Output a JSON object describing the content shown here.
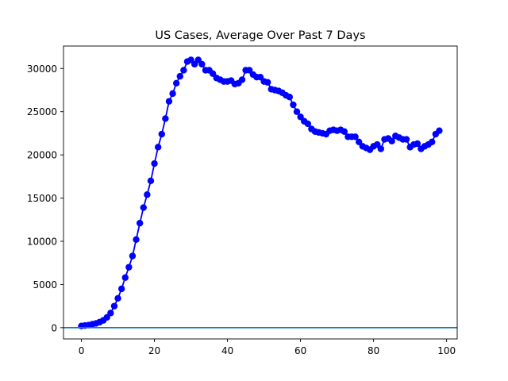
{
  "chart_data": {
    "type": "line",
    "title": "US Cases, Average Over Past 7 Days",
    "xlabel": "",
    "ylabel": "",
    "xlim": [
      -4.9,
      102.9
    ],
    "ylim": [
      -1300,
      32600
    ],
    "x_ticks": [
      0,
      20,
      40,
      60,
      80,
      100
    ],
    "y_ticks": [
      0,
      5000,
      10000,
      15000,
      20000,
      25000,
      30000
    ],
    "grid": false,
    "legend": "none",
    "series": [
      {
        "color": "#0000ff",
        "marker": "circle",
        "x": [
          0,
          1,
          2,
          3,
          4,
          5,
          6,
          7,
          8,
          9,
          10,
          11,
          12,
          13,
          14,
          15,
          16,
          17,
          18,
          19,
          20,
          21,
          22,
          23,
          24,
          25,
          26,
          27,
          28,
          29,
          30,
          31,
          32,
          33,
          34,
          35,
          36,
          37,
          38,
          39,
          40,
          41,
          42,
          43,
          44,
          45,
          46,
          47,
          48,
          49,
          50,
          51,
          52,
          53,
          54,
          55,
          56,
          57,
          58,
          59,
          60,
          61,
          62,
          63,
          64,
          65,
          66,
          67,
          68,
          69,
          70,
          71,
          72,
          73,
          74,
          75,
          76,
          77,
          78,
          79,
          80,
          81,
          82,
          83,
          84,
          85,
          86,
          87,
          88,
          89,
          90,
          91,
          92,
          93,
          94,
          95,
          96,
          97,
          98
        ],
        "y": [
          200,
          250,
          300,
          400,
          500,
          650,
          850,
          1200,
          1700,
          2500,
          3400,
          4500,
          5800,
          7000,
          8300,
          10200,
          12100,
          13900,
          15400,
          17000,
          19000,
          20900,
          22400,
          24200,
          26200,
          27100,
          28300,
          29100,
          29800,
          30800,
          31000,
          30500,
          31000,
          30500,
          29800,
          29800,
          29400,
          28900,
          28700,
          28500,
          28500,
          28600,
          28200,
          28300,
          28700,
          29800,
          29800,
          29300,
          29000,
          29000,
          28500,
          28400,
          27600,
          27500,
          27400,
          27200,
          26900,
          26700,
          25800,
          25000,
          24400,
          23900,
          23600,
          23000,
          22700,
          22600,
          22500,
          22400,
          22800,
          22900,
          22800,
          22900,
          22700,
          22100,
          22100,
          22100,
          21500,
          21000,
          20800,
          20600,
          21000,
          21200,
          20700,
          21800,
          21900,
          21600,
          22200,
          22000,
          21800,
          21800,
          20900,
          21200,
          21300,
          20700,
          21000,
          21200,
          21500,
          22400,
          22800
        ]
      },
      {
        "color": "#1f77b4",
        "marker": "none",
        "x": [
          -4.9,
          102.9
        ],
        "y": [
          0,
          0
        ]
      }
    ]
  }
}
